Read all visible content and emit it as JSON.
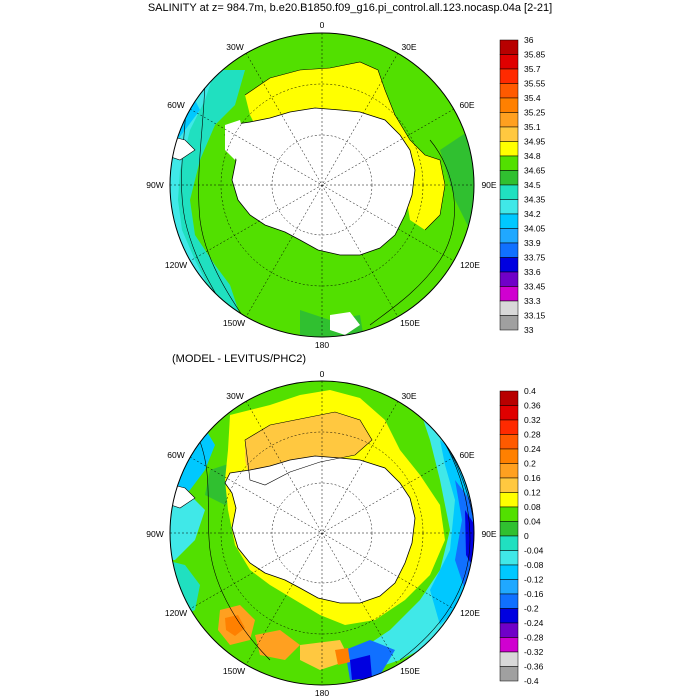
{
  "title": "SALINITY at z= 984.7m, b.e20.B1850.f09_g16.pi_control.all.123.nocasp.04a [2-21]",
  "subtitle": "(MODEL - LEVITUS/PHC2)",
  "longitude_labels": {
    "top": "0",
    "e30": "30E",
    "e60": "60E",
    "e90": "90E",
    "e120": "120E",
    "e150": "150E",
    "bottom": "180",
    "w150": "150W",
    "w120": "120W",
    "w90": "90W",
    "w60": "60W",
    "w30": "30W"
  },
  "colors": {
    "land": "#ffffff",
    "coast": "#000000",
    "graticule": "#000000"
  },
  "panel1_colorbar": {
    "labels": [
      "36",
      "35.85",
      "35.7",
      "35.55",
      "35.4",
      "35.25",
      "35.1",
      "34.95",
      "34.8",
      "34.65",
      "34.5",
      "34.35",
      "34.2",
      "34.05",
      "33.9",
      "33.75",
      "33.6",
      "33.45",
      "33.3",
      "33.15",
      "33"
    ],
    "colors": [
      "#b80000",
      "#e00000",
      "#ff2a00",
      "#ff5a00",
      "#ff8000",
      "#ffa020",
      "#ffc840",
      "#ffff00",
      "#52e000",
      "#30c030",
      "#20e0c0",
      "#40e8e8",
      "#00c8ff",
      "#20a8ff",
      "#1070ff",
      "#0000e0",
      "#7000c8",
      "#d000d0",
      "#d8d8d8",
      "#a0a0a0"
    ]
  },
  "panel2_colorbar": {
    "labels": [
      "0.4",
      "0.36",
      "0.32",
      "0.28",
      "0.24",
      "0.2",
      "0.16",
      "0.12",
      "0.08",
      "0.04",
      "0",
      "-0.04",
      "-0.08",
      "-0.12",
      "-0.16",
      "-0.2",
      "-0.24",
      "-0.28",
      "-0.32",
      "-0.36",
      "-0.4"
    ],
    "colors": [
      "#b80000",
      "#e00000",
      "#ff2a00",
      "#ff5a00",
      "#ff8000",
      "#ffa020",
      "#ffc840",
      "#ffff00",
      "#52e000",
      "#30c030",
      "#20e0c0",
      "#40e8e8",
      "#00c8ff",
      "#20a8ff",
      "#1070ff",
      "#0000e0",
      "#7000c8",
      "#d000d0",
      "#d8d8d8",
      "#a0a0a0"
    ]
  }
}
